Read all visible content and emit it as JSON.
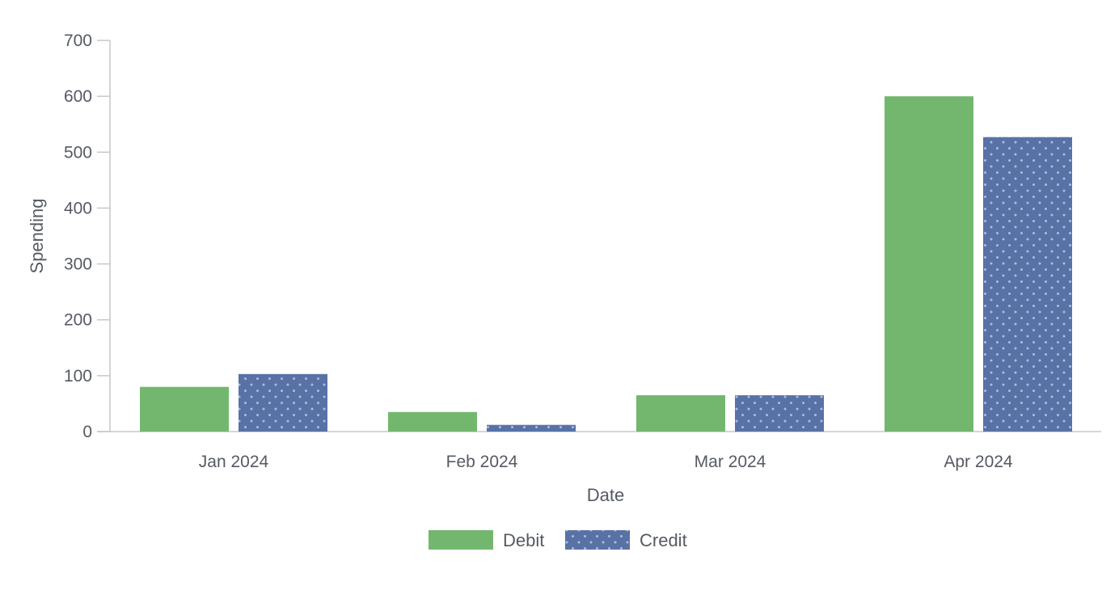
{
  "chart_data": {
    "type": "bar",
    "title": "",
    "xlabel": "Date",
    "ylabel": "Spending",
    "categories": [
      "Jan 2024",
      "Feb 2024",
      "Mar 2024",
      "Apr 2024"
    ],
    "series": [
      {
        "name": "Debit",
        "values": [
          80,
          35,
          65,
          600
        ],
        "color": "#73b76e",
        "pattern": "solid"
      },
      {
        "name": "Credit",
        "values": [
          103,
          12,
          65,
          527
        ],
        "color": "#5872a6",
        "pattern": "dots"
      }
    ],
    "ylim": [
      0,
      700
    ],
    "yticks": [
      0,
      100,
      200,
      300,
      400,
      500,
      600,
      700
    ],
    "grid": false,
    "legend": "bottom-center",
    "axis_color": "#c7c7c7",
    "text_color": "#555a62"
  }
}
